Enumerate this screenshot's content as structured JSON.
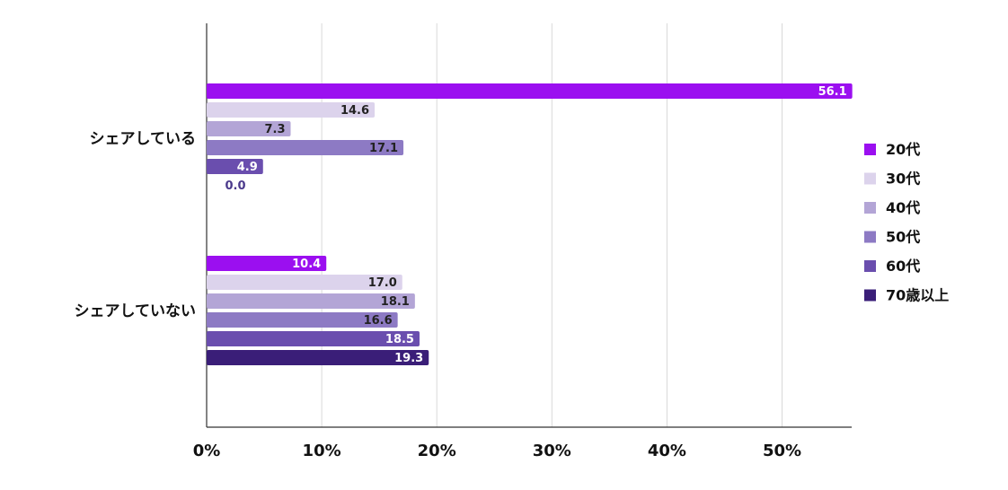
{
  "chart_data": {
    "type": "bar",
    "orientation": "horizontal",
    "categories": [
      "シェアしている",
      "シェアしていない"
    ],
    "series": [
      {
        "name": "20代",
        "color": "#9b0ff0",
        "values": [
          56.1,
          10.4
        ]
      },
      {
        "name": "30代",
        "color": "#dcd3ec",
        "values": [
          14.6,
          17.0
        ]
      },
      {
        "name": "40代",
        "color": "#b3a5d6",
        "values": [
          7.3,
          18.1
        ]
      },
      {
        "name": "50代",
        "color": "#8d7ac4",
        "values": [
          17.1,
          16.6
        ]
      },
      {
        "name": "60代",
        "color": "#6a4eae",
        "values": [
          4.9,
          18.5
        ]
      },
      {
        "name": "70歳以上",
        "color": "#3a1e78",
        "values": [
          0.0,
          19.3
        ]
      }
    ],
    "xlim": [
      0,
      56
    ],
    "xticks": [
      "0%",
      "10%",
      "20%",
      "30%",
      "40%",
      "50%"
    ],
    "xtick_values": [
      0,
      10,
      20,
      30,
      40,
      50
    ],
    "grid": true,
    "legend_position": "right",
    "title": "",
    "xlabel": "",
    "ylabel": ""
  }
}
